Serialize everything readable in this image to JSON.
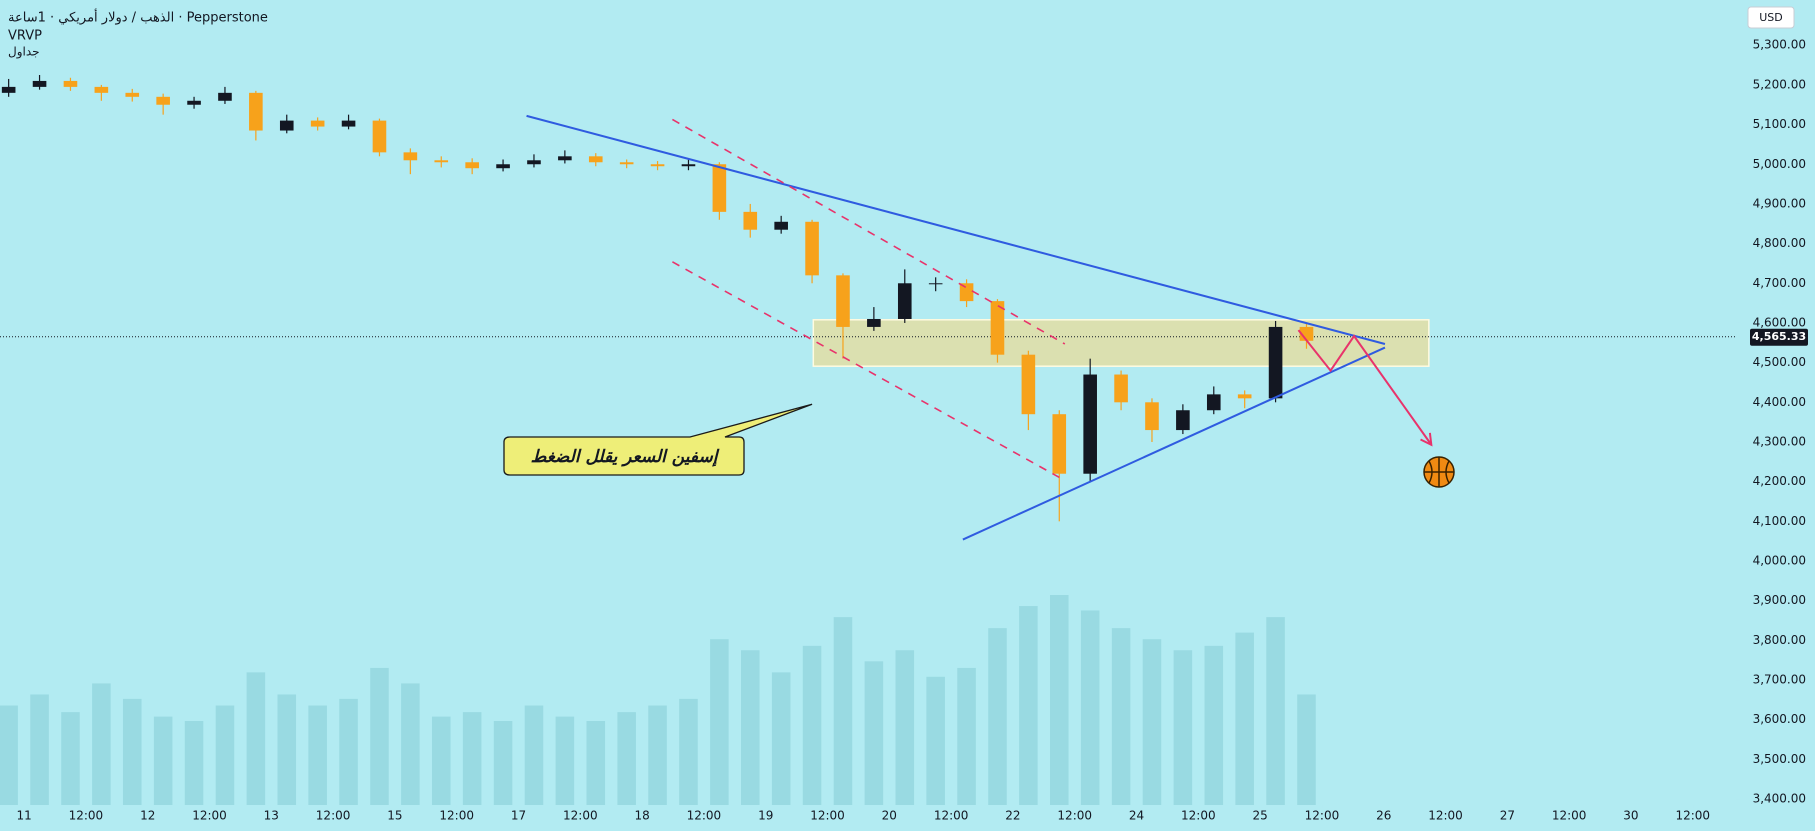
{
  "chart_data": {
    "type": "candlestick",
    "title": "الذهب / دولار أمريكي · 1ساعة · Pepperstone",
    "indicator": "VRVP",
    "subtitle": "جداول",
    "currency": "USD",
    "x": [
      -0.25,
      0.25,
      0.75,
      1.25,
      1.75,
      2.25,
      2.75,
      3.25,
      3.75,
      4.25,
      4.75,
      5.25,
      5.75,
      6.25,
      6.75,
      7.25,
      7.75,
      8.25,
      8.75,
      9.25,
      9.75,
      10.25,
      10.75,
      11.25,
      11.75,
      12.25,
      12.75,
      13.25,
      13.75,
      14.25,
      14.75,
      15.25,
      15.75,
      16.25,
      16.75,
      17.25,
      17.75,
      18.25,
      18.75,
      19.25,
      19.75,
      20.25,
      20.75
    ],
    "open": [
      5180,
      5195,
      5210,
      5195,
      5180,
      5170,
      5150,
      5160,
      5180,
      5085,
      5110,
      5095,
      5110,
      5030,
      5010,
      5005,
      4990,
      5000,
      5010,
      5020,
      5005,
      5000,
      4995,
      5000,
      4880,
      4835,
      4855,
      4720,
      4590,
      4610,
      4700,
      4700,
      4655,
      4520,
      4370,
      4220,
      4470,
      4400,
      4330,
      4380,
      4420,
      4410,
      4590
    ],
    "high": [
      5215,
      5225,
      5218,
      5200,
      5190,
      5178,
      5170,
      5195,
      5185,
      5125,
      5118,
      5125,
      5115,
      5040,
      5020,
      5015,
      5012,
      5025,
      5035,
      5028,
      5012,
      5008,
      5012,
      5005,
      4900,
      4870,
      4860,
      4725,
      4640,
      4735,
      4715,
      4710,
      4660,
      4530,
      4380,
      4510,
      4480,
      4410,
      4395,
      4440,
      4430,
      4605,
      4600
    ],
    "low": [
      5170,
      5188,
      5185,
      5160,
      5158,
      5125,
      5140,
      5152,
      5060,
      5078,
      5085,
      5088,
      5020,
      4975,
      4992,
      4975,
      4982,
      4992,
      5002,
      4995,
      4990,
      4985,
      4985,
      4860,
      4815,
      4825,
      4700,
      4510,
      4580,
      4600,
      4680,
      4640,
      4500,
      4330,
      4100,
      4200,
      4380,
      4300,
      4320,
      4370,
      4385,
      4400,
      4535
    ],
    "close": [
      5195,
      5210,
      5195,
      5180,
      5170,
      5150,
      5160,
      5180,
      5085,
      5110,
      5095,
      5110,
      5030,
      5010,
      5005,
      4990,
      5000,
      5010,
      5020,
      5005,
      5000,
      4995,
      5000,
      4880,
      4835,
      4855,
      4720,
      4590,
      4610,
      4700,
      4700,
      4655,
      4520,
      4370,
      4220,
      4470,
      4400,
      4330,
      4380,
      4420,
      4410,
      4590,
      4555
    ],
    "volume": [
      45,
      50,
      42,
      55,
      48,
      40,
      38,
      45,
      60,
      50,
      45,
      48,
      62,
      55,
      40,
      42,
      38,
      45,
      40,
      38,
      42,
      45,
      48,
      75,
      70,
      60,
      72,
      85,
      65,
      70,
      58,
      62,
      80,
      90,
      95,
      88,
      80,
      75,
      70,
      72,
      78,
      85,
      50
    ],
    "up_color": "#131722",
    "down_color": "#f7a21b",
    "volume_color": "#8fd3dc",
    "xlim": [
      -0.39,
      27.7
    ],
    "ylim": [
      3385,
      5414
    ],
    "xticks": [
      {
        "value": 0,
        "label": "11"
      },
      {
        "value": 1,
        "label": "12:00"
      },
      {
        "value": 2,
        "label": "12"
      },
      {
        "value": 3,
        "label": "12:00"
      },
      {
        "value": 4,
        "label": "13"
      },
      {
        "value": 5,
        "label": "12:00"
      },
      {
        "value": 6,
        "label": "15"
      },
      {
        "value": 7,
        "label": "12:00"
      },
      {
        "value": 8,
        "label": "17"
      },
      {
        "value": 9,
        "label": "12:00"
      },
      {
        "value": 10,
        "label": "18"
      },
      {
        "value": 11,
        "label": "12:00"
      },
      {
        "value": 12,
        "label": "19"
      },
      {
        "value": 13,
        "label": "12:00"
      },
      {
        "value": 14,
        "label": "20"
      },
      {
        "value": 15,
        "label": "12:00"
      },
      {
        "value": 16,
        "label": "22"
      },
      {
        "value": 17,
        "label": "12:00"
      },
      {
        "value": 18,
        "label": "24"
      },
      {
        "value": 19,
        "label": "12:00"
      },
      {
        "value": 20,
        "label": "25"
      },
      {
        "value": 21,
        "label": "12:00"
      },
      {
        "value": 22,
        "label": "26"
      },
      {
        "value": 23,
        "label": "12:00"
      },
      {
        "value": 24,
        "label": "27"
      },
      {
        "value": 25,
        "label": "12:00"
      },
      {
        "value": 26,
        "label": "30"
      },
      {
        "value": 27,
        "label": "12:00"
      }
    ],
    "yticks": [
      {
        "value": 3400,
        "label": "3,400.00"
      },
      {
        "value": 3500,
        "label": "3,500.00"
      },
      {
        "value": 3600,
        "label": "3,600.00"
      },
      {
        "value": 3700,
        "label": "3,700.00"
      },
      {
        "value": 3800,
        "label": "3,800.00"
      },
      {
        "value": 3900,
        "label": "3,900.00"
      },
      {
        "value": 4000,
        "label": "4,000.00"
      },
      {
        "value": 4100,
        "label": "4,100.00"
      },
      {
        "value": 4200,
        "label": "4,200.00"
      },
      {
        "value": 4300,
        "label": "4,300.00"
      },
      {
        "value": 4400,
        "label": "4,400.00"
      },
      {
        "value": 4500,
        "label": "4,500.00"
      },
      {
        "value": 4600,
        "label": "4,600.00"
      },
      {
        "value": 4700,
        "label": "4,700.00"
      },
      {
        "value": 4800,
        "label": "4,800.00"
      },
      {
        "value": 4900,
        "label": "4,900.00"
      },
      {
        "value": 5000,
        "label": "5,000.00"
      },
      {
        "value": 5100,
        "label": "5,100.00"
      },
      {
        "value": 5200,
        "label": "5,200.00"
      },
      {
        "value": 5300,
        "label": "5,300.00"
      }
    ],
    "last_price": {
      "value": 4565.33,
      "label": "4,565.33"
    },
    "zone": {
      "x": [
        12.77,
        22.73
      ],
      "y": [
        4608,
        4491
      ],
      "color": "#e8dc9a"
    },
    "lines": [
      {
        "x": [
          8.13,
          22.02
        ],
        "y": [
          5122,
          4547
        ],
        "color": "#2f5be0",
        "dashed": false
      },
      {
        "x": [
          15.19,
          22.02
        ],
        "y": [
          4054,
          4538
        ],
        "color": "#2f5be0",
        "dashed": false
      },
      {
        "x": [
          10.49,
          16.84
        ],
        "y": [
          5113,
          4547
        ],
        "color": "#e8336b",
        "dashed": true
      },
      {
        "x": [
          10.49,
          16.84
        ],
        "y": [
          4754,
          4203
        ],
        "color": "#e8336b",
        "dashed": true
      }
    ],
    "projection": {
      "x": [
        20.62,
        21.14,
        21.52,
        22.77
      ],
      "y": [
        4582,
        4480,
        4567,
        4293
      ],
      "color": "#e8336b"
    },
    "callout": {
      "text": "إسفين السعر يقلل الضغط",
      "x": 12.75,
      "y": 4395
    }
  }
}
